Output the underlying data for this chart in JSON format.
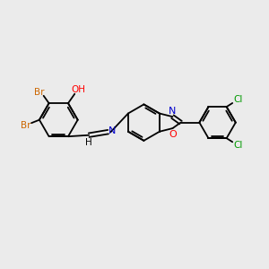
{
  "background_color": "#ebebeb",
  "atom_colors": {
    "O": "#ff0000",
    "N": "#0000cc",
    "Br": "#cc6600",
    "Cl": "#009900"
  },
  "lw": 1.3,
  "figsize": [
    3.0,
    3.0
  ],
  "dpi": 100
}
